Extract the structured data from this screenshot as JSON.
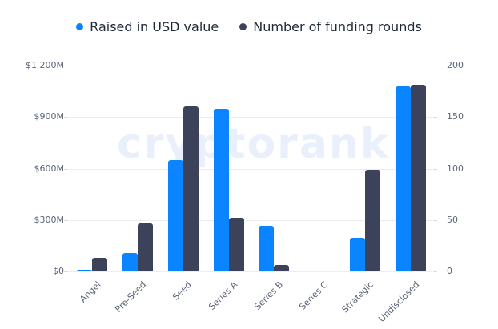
{
  "legend": [
    {
      "label": "Raised in USD value",
      "color": "#0a84ff"
    },
    {
      "label": "Number of funding rounds",
      "color": "#3b4259"
    }
  ],
  "watermark": "cryptorank",
  "axes": {
    "left_ticks": [
      "$1 200M",
      "$900M",
      "$600M",
      "$300M",
      "$0"
    ],
    "right_ticks": [
      "200",
      "150",
      "100",
      "50",
      "0"
    ]
  },
  "chart_data": {
    "type": "bar",
    "title": "",
    "xlabel": "",
    "ylabel": "Raised in USD value",
    "y2label": "Number of funding rounds",
    "categories": [
      "Angel",
      "Pre-Seed",
      "Seed",
      "Series A",
      "Series B",
      "Series C",
      "Strategic",
      "Undisclosed"
    ],
    "series": [
      {
        "name": "Raised in USD value",
        "axis": "left",
        "unit": "$M",
        "color": "#0a84ff",
        "values": [
          8,
          107,
          650,
          948,
          266,
          0,
          196,
          1078
        ]
      },
      {
        "name": "Number of funding rounds",
        "axis": "right",
        "color": "#3b4259",
        "values": [
          13,
          47,
          160,
          52,
          6,
          1,
          99,
          181
        ]
      }
    ],
    "ylim": [
      0,
      1200
    ],
    "y2lim": [
      0,
      200
    ],
    "grid": true,
    "legend_position": "top"
  }
}
